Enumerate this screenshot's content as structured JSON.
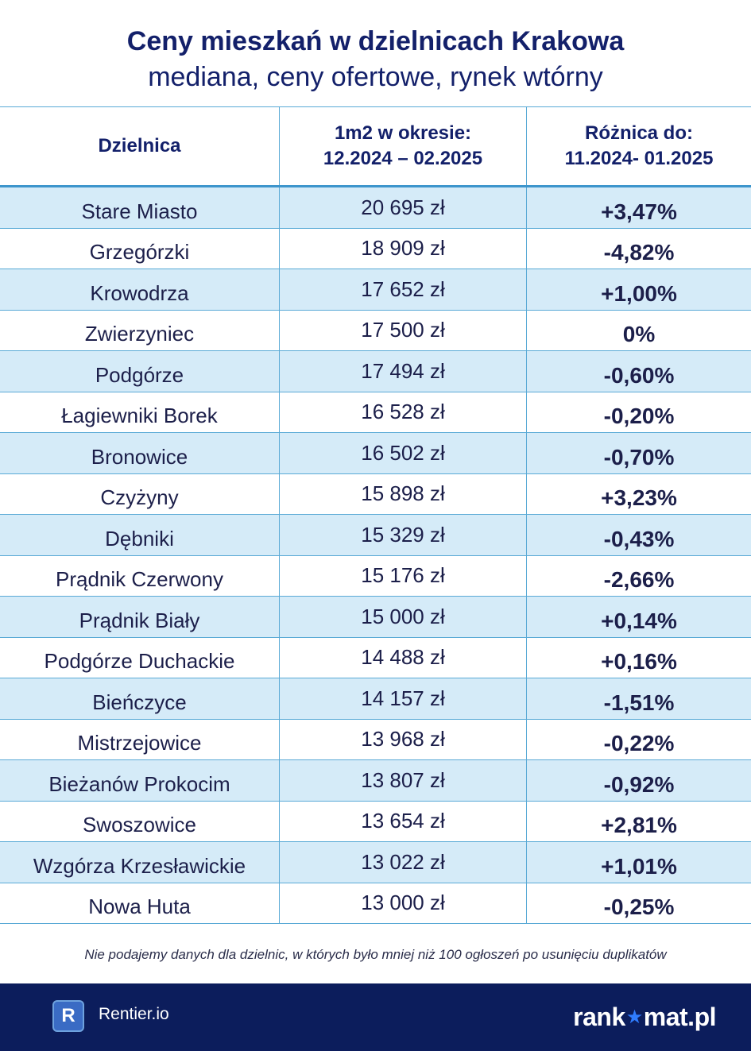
{
  "header": {
    "title": "Ceny mieszkań w dzielnicach Krakowa",
    "subtitle": "mediana, ceny ofertowe, rynek wtórny"
  },
  "table": {
    "col1_header": "Dzielnica",
    "col2_header_line1": "1m2 w okresie:",
    "col2_header_line2": "12.2024 – 02.2025",
    "col3_header_line1": "Różnica do:",
    "col3_header_line2": "11.2024- 01.2025",
    "rows": [
      {
        "district": "Stare Miasto",
        "price": "20 695 zł",
        "diff": "+3,47%"
      },
      {
        "district": "Grzegórzki",
        "price": "18 909 zł",
        "diff": "-4,82%"
      },
      {
        "district": "Krowodrza",
        "price": "17 652 zł",
        "diff": "+1,00%"
      },
      {
        "district": "Zwierzyniec",
        "price": "17 500 zł",
        "diff": "0%"
      },
      {
        "district": "Podgórze",
        "price": "17 494 zł",
        "diff": "-0,60%"
      },
      {
        "district": "Łagiewniki Borek",
        "price": "16 528 zł",
        "diff": "-0,20%"
      },
      {
        "district": "Bronowice",
        "price": "16 502 zł",
        "diff": "-0,70%"
      },
      {
        "district": "Czyżyny",
        "price": "15 898 zł",
        "diff": "+3,23%"
      },
      {
        "district": "Dębniki",
        "price": "15 329 zł",
        "diff": "-0,43%"
      },
      {
        "district": "Prądnik Czerwony",
        "price": "15 176 zł",
        "diff": "-2,66%"
      },
      {
        "district": "Prądnik Biały",
        "price": "15 000 zł",
        "diff": "+0,14%"
      },
      {
        "district": "Podgórze Duchackie",
        "price": "14 488 zł",
        "diff": "+0,16%"
      },
      {
        "district": "Bieńczyce",
        "price": "14 157 zł",
        "diff": "-1,51%"
      },
      {
        "district": "Mistrzejowice",
        "price": "13 968 zł",
        "diff": "-0,22%"
      },
      {
        "district": "Bieżanów Prokocim",
        "price": "13 807 zł",
        "diff": "-0,92%"
      },
      {
        "district": "Swoszowice",
        "price": "13 654 zł",
        "diff": "+2,81%"
      },
      {
        "district": "Wzgórza Krzesławickie",
        "price": "13 022 zł",
        "diff": "+1,01%"
      },
      {
        "district": "Nowa Huta",
        "price": "13 000 zł",
        "diff": "-0,25%"
      }
    ]
  },
  "footnote": "Nie podajemy danych dla dzielnic, w których było mniej niż 100 ogłoszeń po usunięciu duplikatów",
  "footer": {
    "rentier_logo_letter": "R",
    "rentier_name": "Rentier.io",
    "rankomat_pre": "rank",
    "rankomat_post": "mat.pl",
    "rankomat_star_icon": "star-icon"
  },
  "colors": {
    "title": "#13206a",
    "row_alt": "#d5ebf8",
    "grid": "#5aaad6",
    "footer_bg": "#0c1d5c"
  }
}
